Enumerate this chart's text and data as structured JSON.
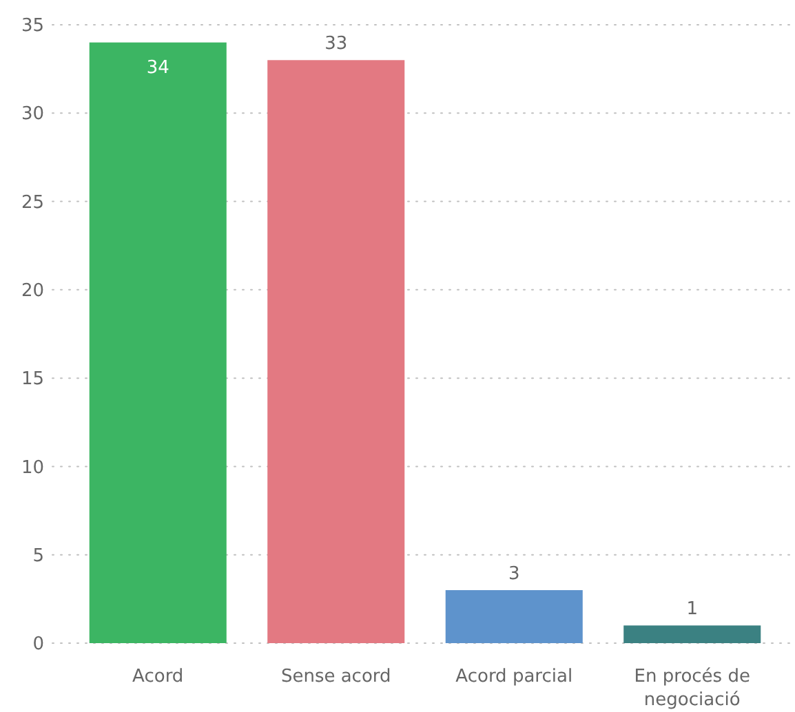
{
  "chart_data": {
    "type": "bar",
    "categories": [
      "Acord",
      "Sense acord",
      "Acord parcial",
      "En procés de negociació"
    ],
    "values": [
      34,
      33,
      3,
      1
    ],
    "colors": [
      "#3cb563",
      "#e37982",
      "#5e93cc",
      "#3b8182"
    ],
    "ylim": [
      0,
      35
    ],
    "yticks": [
      0,
      5,
      10,
      15,
      20,
      25,
      30,
      35
    ],
    "grid": "y",
    "data_labels": true
  }
}
